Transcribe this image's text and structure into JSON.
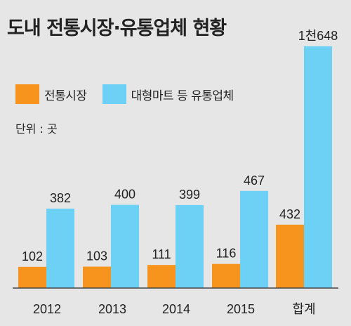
{
  "chart_data": {
    "type": "bar",
    "title": "도내 전통시장·유통업체 현황",
    "unit_label": "단위 : 곳",
    "categories": [
      "2012",
      "2013",
      "2014",
      "2015",
      "합계"
    ],
    "series": [
      {
        "name": "전통시장",
        "color": "#f7941d",
        "values": [
          102,
          103,
          111,
          116,
          432
        ],
        "labels": [
          "102",
          "103",
          "111",
          "116",
          "432"
        ]
      },
      {
        "name": "대형마트 등 유통업체",
        "color": "#6dd0f5",
        "values": [
          382,
          400,
          399,
          467,
          1648
        ],
        "labels": [
          "382",
          "400",
          "399",
          "467",
          "1천648"
        ]
      }
    ],
    "legend_position": "top-left",
    "grid": false
  }
}
